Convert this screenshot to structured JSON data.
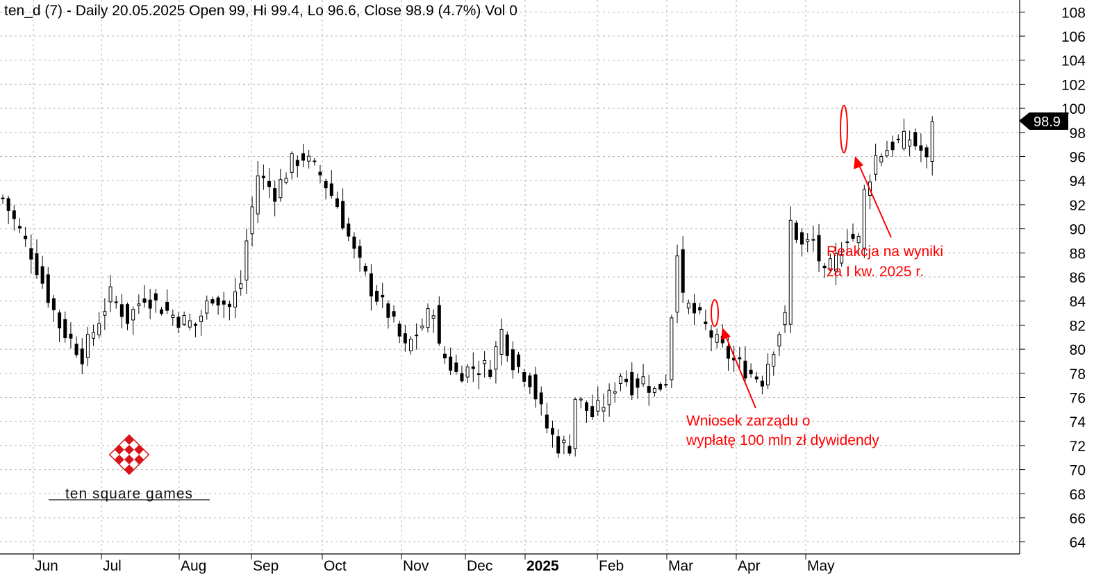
{
  "chart_data": {
    "type": "candlestick",
    "title": "ten_d (7) - Daily 20.05.2025 Open 99, Hi 99.4, Lo 96.6, Close 98.9 (4.7%) Vol 0",
    "ylim": [
      63,
      109
    ],
    "y_ticks": [
      108,
      106,
      104,
      102,
      100,
      98,
      96,
      94,
      92,
      90,
      88,
      86,
      84,
      82,
      80,
      78,
      76,
      74,
      72,
      70,
      68,
      66,
      64
    ],
    "x_ticks": [
      {
        "label": "Jun",
        "bold": false
      },
      {
        "label": "Jul",
        "bold": false
      },
      {
        "label": "Aug",
        "bold": false
      },
      {
        "label": "Sep",
        "bold": false
      },
      {
        "label": "Oct",
        "bold": false
      },
      {
        "label": "Nov",
        "bold": false
      },
      {
        "label": "Dec",
        "bold": false
      },
      {
        "label": "2025",
        "bold": true
      },
      {
        "label": "Feb",
        "bold": false
      },
      {
        "label": "Mar",
        "bold": false
      },
      {
        "label": "Apr",
        "bold": false
      },
      {
        "label": "May",
        "bold": false
      }
    ],
    "last_price": "98.9",
    "grid": true,
    "series_path": [
      [
        0,
        92.5
      ],
      [
        5,
        88
      ],
      [
        10,
        82
      ],
      [
        14,
        79.5
      ],
      [
        17,
        82.5
      ],
      [
        19,
        84.5
      ],
      [
        22,
        82.5
      ],
      [
        25,
        84.5
      ],
      [
        28,
        83.5
      ],
      [
        31,
        82.5
      ],
      [
        34,
        82
      ],
      [
        37,
        84.5
      ],
      [
        40,
        83.5
      ],
      [
        42,
        85.5
      ],
      [
        43,
        89
      ],
      [
        45,
        94.5
      ],
      [
        48,
        93
      ],
      [
        51,
        95.5
      ],
      [
        53,
        96
      ],
      [
        56,
        94.5
      ],
      [
        59,
        92
      ],
      [
        62,
        88
      ],
      [
        65,
        85
      ],
      [
        68,
        83
      ],
      [
        71,
        80
      ],
      [
        74,
        82
      ],
      [
        76,
        83.5
      ],
      [
        77,
        80
      ],
      [
        80,
        78
      ],
      [
        83,
        78.5
      ],
      [
        86,
        78.5
      ],
      [
        88,
        81.5
      ],
      [
        90,
        79
      ],
      [
        93,
        77.5
      ],
      [
        96,
        73.5
      ],
      [
        98,
        72
      ],
      [
        100,
        72
      ],
      [
        101,
        76
      ],
      [
        104,
        74.5
      ],
      [
        107,
        76
      ],
      [
        109,
        78
      ],
      [
        111,
        77
      ],
      [
        113,
        77.5
      ],
      [
        115,
        76.5
      ],
      [
        117,
        77.5
      ],
      [
        119,
        88.5
      ],
      [
        120,
        84
      ],
      [
        123,
        82.5
      ],
      [
        126,
        80.5
      ],
      [
        129,
        79
      ],
      [
        132,
        78
      ],
      [
        134,
        77.5
      ],
      [
        135,
        79
      ],
      [
        137,
        81.5
      ],
      [
        138,
        82.5
      ],
      [
        139,
        90.5
      ],
      [
        141,
        88.5
      ],
      [
        143,
        89
      ],
      [
        145,
        86
      ],
      [
        147,
        87.5
      ],
      [
        149,
        89.5
      ],
      [
        151,
        89
      ],
      [
        152,
        93
      ],
      [
        154,
        96
      ],
      [
        157,
        97
      ],
      [
        160,
        97.5
      ],
      [
        162,
        96.5
      ],
      [
        163,
        95.5
      ],
      [
        164,
        98.9
      ]
    ],
    "annotations": [
      {
        "lines": [
          "Wniosek zarządu o",
          "wypłatę 100 mln zł dywidendy"
        ]
      },
      {
        "lines": [
          "Reakcja na wyniki",
          "za I kw. 2025 r."
        ]
      }
    ]
  },
  "logo": {
    "text": "ten square games"
  }
}
